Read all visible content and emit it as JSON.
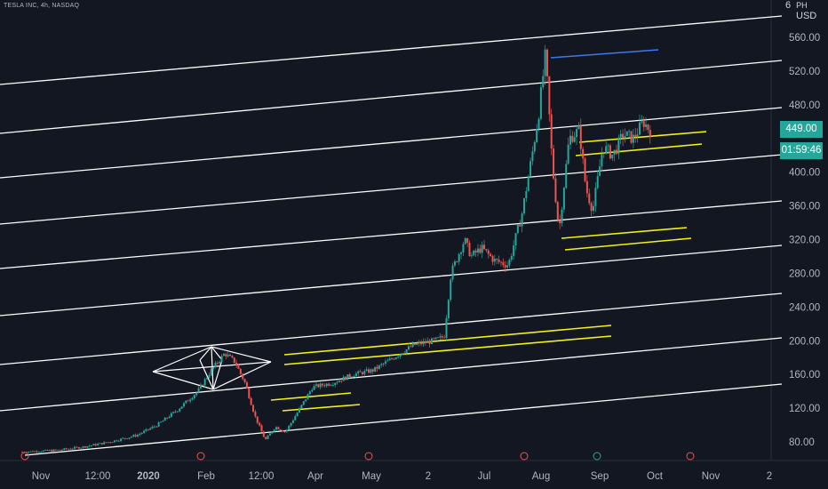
{
  "symbol": "TESLA INC, 4h, NASDAQ",
  "currency": {
    "top_tick": "6",
    "partial": "PH",
    "label": "USD"
  },
  "last_price": "449.00",
  "countdown": "01:59:46",
  "colors": {
    "background": "#131722",
    "axis_text": "#b2b5be",
    "trend_lines": "#ffffff",
    "yellow_lines": "#f6f014",
    "blue_line": "#3d7ae8",
    "candle_up": "#26a69a",
    "candle_down": "#ef5350",
    "price_tag": "#26a69a",
    "event_marker": "#ef5350"
  },
  "chart_data": {
    "type": "candlestick",
    "title": "TESLA INC, 4h, NASDAQ",
    "y_unit": "USD",
    "ylim": [
      60,
      600
    ],
    "y_ticks": [
      80,
      120,
      160,
      200,
      240,
      280,
      320,
      360,
      400,
      440,
      480,
      520,
      560
    ],
    "y_tick_labels": [
      "80.00",
      "120.00",
      "160.00",
      "200.00",
      "240.00",
      "280.00",
      "320.00",
      "360.00",
      "400.00",
      "",
      "480.00",
      "520.00",
      "560.00"
    ],
    "x_tick_labels": [
      "Nov",
      "12:00",
      "2020",
      "Feb",
      "12:00",
      "Apr",
      "May",
      "2",
      "Jul",
      "Aug",
      "Sep",
      "Oct",
      "Nov",
      "2"
    ],
    "grid": false,
    "series_close_path": [
      {
        "t": 0.0,
        "v": 68
      },
      {
        "t": 0.05,
        "v": 70
      },
      {
        "t": 0.09,
        "v": 74
      },
      {
        "t": 0.13,
        "v": 80
      },
      {
        "t": 0.17,
        "v": 88
      },
      {
        "t": 0.2,
        "v": 100
      },
      {
        "t": 0.23,
        "v": 118
      },
      {
        "t": 0.26,
        "v": 140
      },
      {
        "t": 0.28,
        "v": 165
      },
      {
        "t": 0.3,
        "v": 185
      },
      {
        "t": 0.315,
        "v": 175
      },
      {
        "t": 0.33,
        "v": 150
      },
      {
        "t": 0.345,
        "v": 110
      },
      {
        "t": 0.36,
        "v": 82
      },
      {
        "t": 0.375,
        "v": 98
      },
      {
        "t": 0.39,
        "v": 92
      },
      {
        "t": 0.41,
        "v": 118
      },
      {
        "t": 0.43,
        "v": 145
      },
      {
        "t": 0.46,
        "v": 150
      },
      {
        "t": 0.49,
        "v": 160
      },
      {
        "t": 0.52,
        "v": 165
      },
      {
        "t": 0.55,
        "v": 180
      },
      {
        "t": 0.58,
        "v": 195
      },
      {
        "t": 0.61,
        "v": 200
      },
      {
        "t": 0.625,
        "v": 205
      },
      {
        "t": 0.635,
        "v": 280
      },
      {
        "t": 0.645,
        "v": 300
      },
      {
        "t": 0.655,
        "v": 320
      },
      {
        "t": 0.665,
        "v": 300
      },
      {
        "t": 0.68,
        "v": 310
      },
      {
        "t": 0.7,
        "v": 295
      },
      {
        "t": 0.72,
        "v": 290
      },
      {
        "t": 0.74,
        "v": 350
      },
      {
        "t": 0.755,
        "v": 420
      },
      {
        "t": 0.765,
        "v": 470
      },
      {
        "t": 0.775,
        "v": 540
      },
      {
        "t": 0.785,
        "v": 410
      },
      {
        "t": 0.795,
        "v": 330
      },
      {
        "t": 0.81,
        "v": 440
      },
      {
        "t": 0.825,
        "v": 450
      },
      {
        "t": 0.835,
        "v": 380
      },
      {
        "t": 0.845,
        "v": 355
      },
      {
        "t": 0.86,
        "v": 430
      },
      {
        "t": 0.875,
        "v": 420
      },
      {
        "t": 0.89,
        "v": 445
      },
      {
        "t": 0.905,
        "v": 440
      },
      {
        "t": 0.92,
        "v": 460
      },
      {
        "t": 0.93,
        "v": 449
      }
    ]
  }
}
